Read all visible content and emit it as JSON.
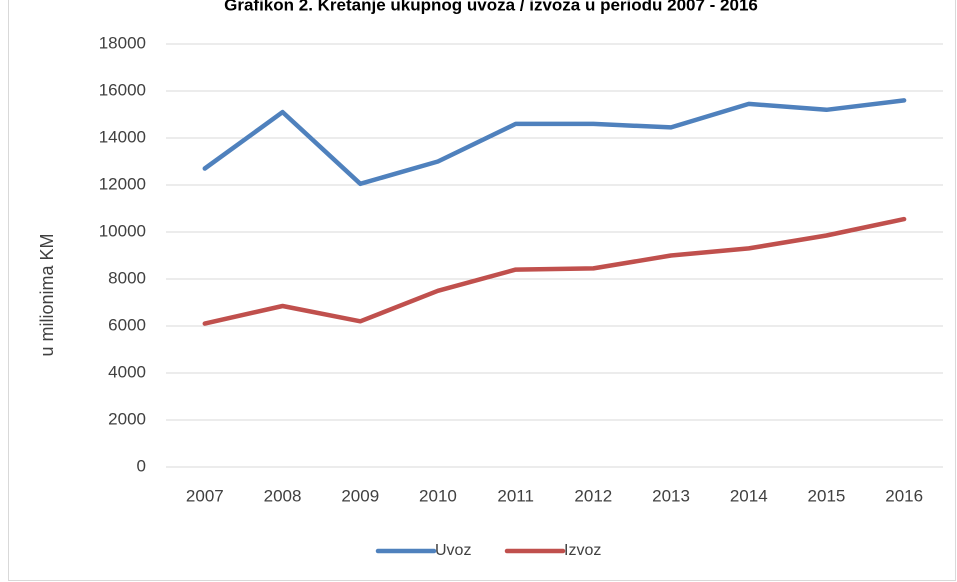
{
  "chart_data": {
    "type": "line",
    "title": "Grafikon 2. Kretanje ukupnog uvoza / izvoza u periodu 2007 - 2016",
    "xlabel": "",
    "ylabel": "u milionima KM",
    "categories": [
      "2007",
      "2008",
      "2009",
      "2010",
      "2011",
      "2012",
      "2013",
      "2014",
      "2015",
      "2016"
    ],
    "ylim": [
      0,
      18000
    ],
    "yticks": [
      0,
      2000,
      4000,
      6000,
      8000,
      10000,
      12000,
      14000,
      16000,
      18000
    ],
    "grid": true,
    "legend_position": "bottom",
    "series": [
      {
        "name": "Uvoz",
        "color": "#4f81bd",
        "values": [
          12700,
          15100,
          12050,
          13000,
          14600,
          14600,
          14450,
          15450,
          15200,
          15600
        ]
      },
      {
        "name": "Izvoz",
        "color": "#c0504d",
        "values": [
          6100,
          6850,
          6200,
          7500,
          8400,
          8450,
          9000,
          9300,
          9850,
          10550
        ]
      }
    ]
  }
}
